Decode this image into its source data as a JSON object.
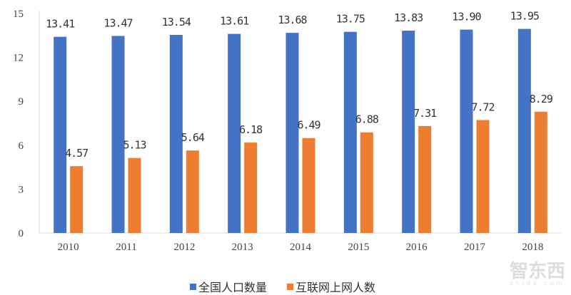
{
  "chart_data": {
    "type": "bar",
    "categories": [
      "2010",
      "2011",
      "2012",
      "2013",
      "2014",
      "2015",
      "2016",
      "2017",
      "2018"
    ],
    "series": [
      {
        "name": "全国人口数量",
        "color": "#4472C4",
        "values": [
          13.41,
          13.47,
          13.54,
          13.61,
          13.68,
          13.75,
          13.83,
          13.9,
          13.95
        ],
        "labels": [
          "13.41",
          "13.47",
          "13.54",
          "13.61",
          "13.68",
          "13.75",
          "13.83",
          "13.90",
          "13.95"
        ]
      },
      {
        "name": "互联网上网人数",
        "color": "#ED7D31",
        "values": [
          4.57,
          5.13,
          5.64,
          6.18,
          6.49,
          6.88,
          7.31,
          7.72,
          8.29
        ],
        "labels": [
          "4.57",
          "5.13",
          "5.64",
          "6.18",
          "6.49",
          "6.88",
          "7.31",
          "7.72",
          "8.29"
        ]
      }
    ],
    "yticks": [
      "0",
      "3",
      "6",
      "9",
      "12",
      "15"
    ],
    "ylim": [
      0,
      15
    ],
    "grid": false,
    "legend_position": "bottom"
  },
  "watermark": {
    "logo": "智东西",
    "sub": "zhidx.com"
  }
}
